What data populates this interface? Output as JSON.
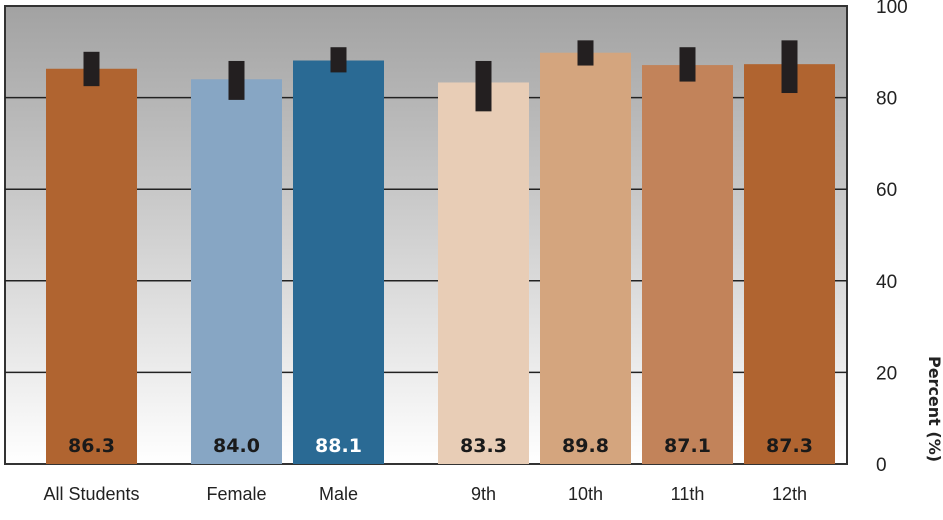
{
  "chart_data": {
    "type": "bar",
    "categories": [
      "All Students",
      "Female",
      "Male",
      "9th",
      "10th",
      "11th",
      "12th"
    ],
    "values": [
      86.3,
      84.0,
      88.1,
      83.3,
      89.8,
      87.1,
      87.3
    ],
    "value_labels": [
      "86.3",
      "84.0",
      "88.1",
      "83.3",
      "89.8",
      "87.1",
      "87.3"
    ],
    "error_low": [
      82.5,
      79.5,
      85.5,
      77.0,
      87.0,
      83.5,
      81.0
    ],
    "error_high": [
      90.0,
      88.0,
      91.0,
      88.0,
      92.5,
      91.0,
      92.5
    ],
    "bar_colors": [
      "#B06430",
      "#87A6C4",
      "#2A6A94",
      "#E8CDB6",
      "#D4A57E",
      "#C2835A",
      "#B06430"
    ],
    "label_colors": [
      "#1a1a1a",
      "#1a1a1a",
      "#ffffff",
      "#1a1a1a",
      "#1a1a1a",
      "#1a1a1a",
      "#1a1a1a"
    ],
    "groups": [
      [
        "All Students"
      ],
      [
        "Female",
        "Male"
      ],
      [
        "9th",
        "10th",
        "11th",
        "12th"
      ]
    ],
    "ylabel": "Percent (%)",
    "ylim": [
      0,
      100
    ],
    "yticks": [
      "0",
      "20",
      "40",
      "60",
      "80",
      "100"
    ],
    "ytick_values": [
      0,
      20,
      40,
      60,
      80,
      100
    ],
    "grid": true,
    "y_axis_side": "right",
    "error_bar_color": "#231f20"
  }
}
